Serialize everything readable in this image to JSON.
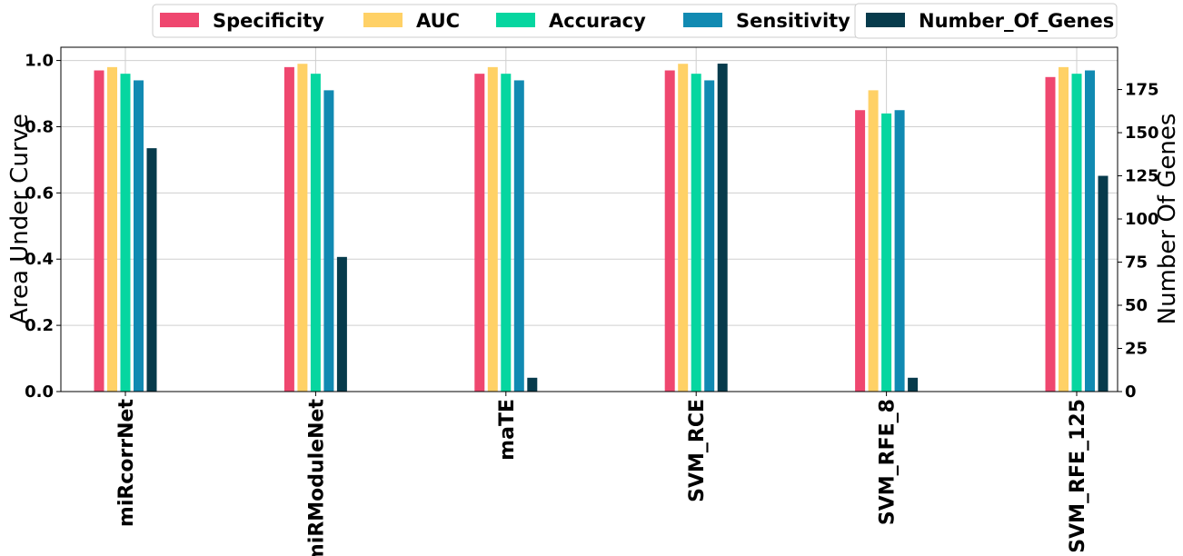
{
  "chart_data": {
    "type": "bar",
    "categories": [
      "miRcorrNet",
      "miRModuleNet",
      "maTE",
      "SVM_RCE",
      "SVM_RFE_8",
      "SVM_RFE_125"
    ],
    "series": [
      {
        "name": "Specificity",
        "color": "#ef476f",
        "axis": "left",
        "values": [
          0.97,
          0.98,
          0.96,
          0.97,
          0.85,
          0.95
        ]
      },
      {
        "name": "AUC",
        "color": "#ffd166",
        "axis": "left",
        "values": [
          0.98,
          0.99,
          0.98,
          0.99,
          0.91,
          0.98
        ]
      },
      {
        "name": "Accuracy",
        "color": "#06d6a0",
        "axis": "left",
        "values": [
          0.96,
          0.96,
          0.96,
          0.96,
          0.84,
          0.96
        ]
      },
      {
        "name": "Sensitivity",
        "color": "#118ab2",
        "axis": "left",
        "values": [
          0.94,
          0.91,
          0.94,
          0.94,
          0.85,
          0.97
        ]
      },
      {
        "name": "Number_Of_Genes",
        "color": "#073b4c",
        "axis": "right",
        "values": [
          141,
          78,
          8,
          190,
          8,
          125
        ]
      }
    ],
    "ylabel": "Area Under Curve",
    "y2label": "Number Of Genes",
    "ylim": [
      0,
      1.04
    ],
    "y2lim": [
      0,
      199.5
    ],
    "yticks": [
      "0.0",
      "0.2",
      "0.4",
      "0.6",
      "0.8",
      "1.0"
    ],
    "y2ticks": [
      "0",
      "25",
      "50",
      "75",
      "100",
      "125",
      "150",
      "175"
    ],
    "grid": true,
    "legend_position": "top-center"
  }
}
